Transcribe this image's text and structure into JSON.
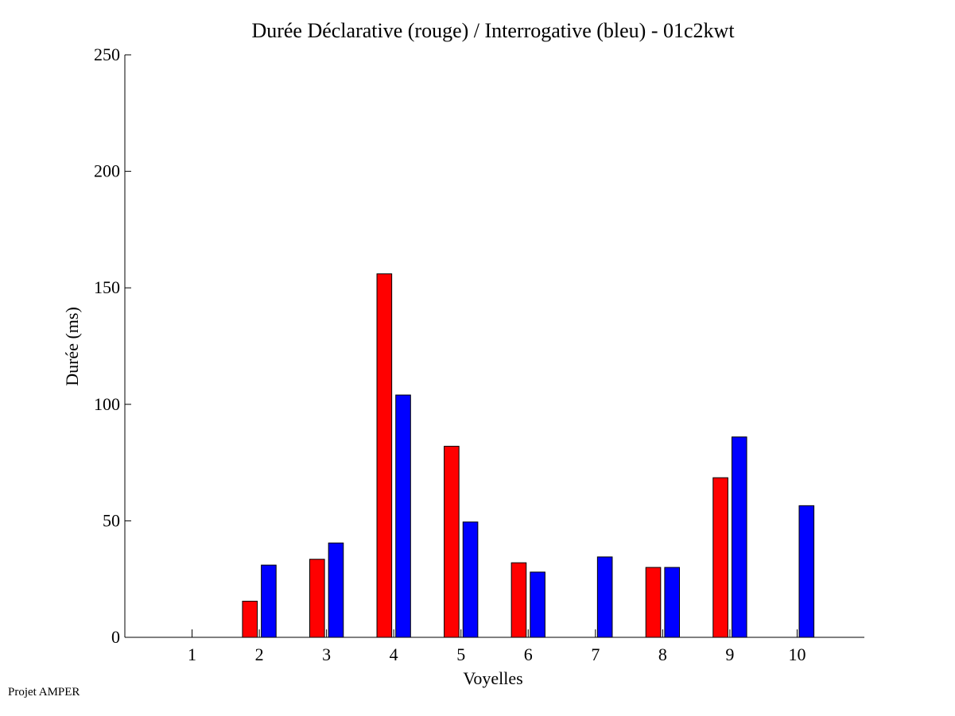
{
  "footer": "Projet AMPER",
  "chart_data": {
    "type": "bar",
    "title": "Durée Déclarative (rouge) / Interrogative (bleu) - 01c2kwt",
    "xlabel": "Voyelles",
    "ylabel": "Durée (ms)",
    "categories": [
      "1",
      "2",
      "3",
      "4",
      "5",
      "6",
      "7",
      "8",
      "9",
      "10"
    ],
    "ylim": [
      0,
      250
    ],
    "yticks": [
      0,
      50,
      100,
      150,
      200,
      250
    ],
    "xlim": [
      0,
      11
    ],
    "grid": false,
    "series": [
      {
        "color": "#ff0000",
        "values": [
          0,
          15.5,
          33.5,
          156,
          82,
          32,
          0,
          30,
          68.5,
          0
        ]
      },
      {
        "color": "#0000ff",
        "values": [
          0,
          31,
          40.5,
          104,
          49.5,
          28,
          34.5,
          30,
          86,
          56.5
        ]
      }
    ]
  }
}
